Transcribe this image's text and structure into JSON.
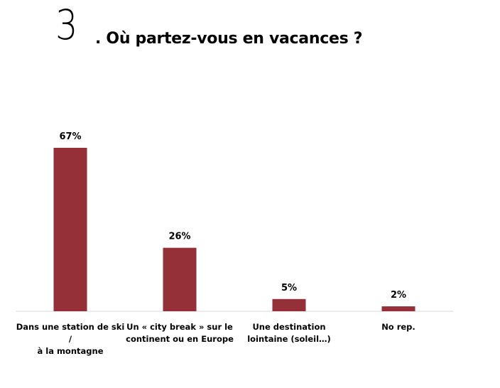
{
  "header": {
    "number": "3",
    "title": ". Où partez-vous en vacances ?"
  },
  "colors": {
    "bar": "#953038",
    "axis": "#d9d9d9"
  },
  "chart_data": {
    "type": "bar",
    "title": ". Où partez-vous en vacances ?",
    "categories": [
      "Dans une station de ski /\nà la montagne",
      "Un « city break » sur le\ncontinent ou en Europe",
      "Une destination\nlointaine (soleil…)",
      "No rep."
    ],
    "values": [
      67,
      26,
      5,
      2
    ],
    "value_labels": [
      "67%",
      "26%",
      "5%",
      "2%"
    ],
    "unit": "%",
    "ylim": [
      0,
      67
    ],
    "grid": false,
    "legend": "none"
  }
}
